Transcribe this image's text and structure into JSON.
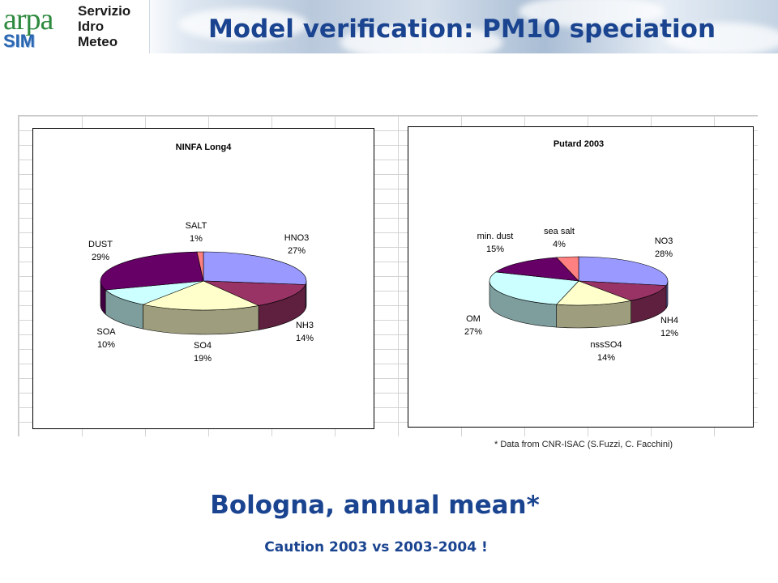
{
  "header": {
    "logo_text": "arpa",
    "logo_sub": "SIM",
    "org_lines": [
      "Servizio",
      "Idro",
      "Meteo"
    ],
    "title": "Model verification: PM10 speciation"
  },
  "chart_data": [
    {
      "type": "pie",
      "title": "NINFA Long4",
      "slices": [
        {
          "label": "HNO3",
          "value": 27,
          "pct_label": "27%",
          "color": "#9999ff"
        },
        {
          "label": "NH3",
          "value": 14,
          "pct_label": "14%",
          "color": "#993366"
        },
        {
          "label": "SO4",
          "value": 19,
          "pct_label": "19%",
          "color": "#ffffcc"
        },
        {
          "label": "SOA",
          "value": 10,
          "pct_label": "10%",
          "color": "#ccffff"
        },
        {
          "label": "DUST",
          "value": 29,
          "pct_label": "29%",
          "color": "#660066"
        },
        {
          "label": "SALT",
          "value": 1,
          "pct_label": "1%",
          "color": "#ff8080"
        }
      ]
    },
    {
      "type": "pie",
      "title": "Putard 2003",
      "slices": [
        {
          "label": "NO3",
          "value": 28,
          "pct_label": "28%",
          "color": "#9999ff"
        },
        {
          "label": "NH4",
          "value": 12,
          "pct_label": "12%",
          "color": "#993366"
        },
        {
          "label": "nssSO4",
          "value": 14,
          "pct_label": "14%",
          "color": "#ffffcc"
        },
        {
          "label": "OM",
          "value": 27,
          "pct_label": "27%",
          "color": "#ccffff"
        },
        {
          "label": "min. dust",
          "value": 15,
          "pct_label": "15%",
          "color": "#660066"
        },
        {
          "label": "sea salt",
          "value": 4,
          "pct_label": "4%",
          "color": "#ff8080"
        }
      ]
    }
  ],
  "footnote": "* Data from CNR-ISAC  (S.Fuzzi,  C. Facchini)",
  "subtitle": "Bologna, annual mean*",
  "caution": "Caution 2003 vs 2003-2004 !"
}
